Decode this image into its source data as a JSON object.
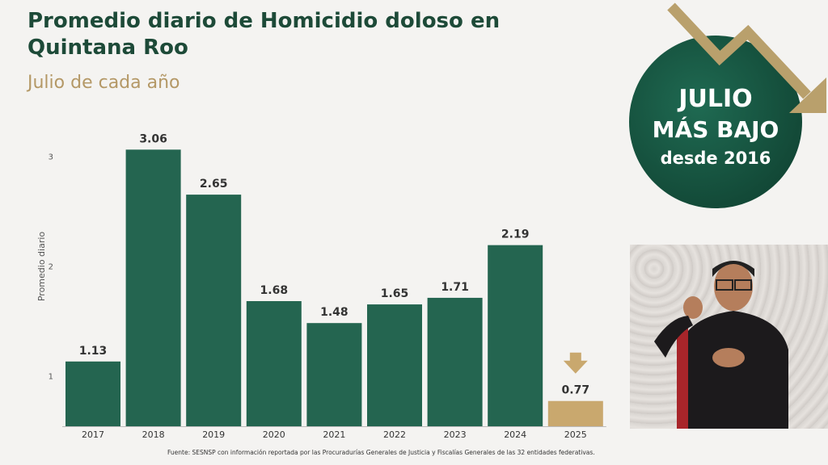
{
  "header": {
    "title": "Promedio diario de Homicidio doloso en Quintana Roo",
    "subtitle": "Julio de cada año"
  },
  "badge": {
    "line1": "JULIO",
    "line2": "MÁS BAJO",
    "line3": "desde 2016"
  },
  "footer": {
    "source": "Fuente: SESNSP con información reportada por las Procuradurías Generales de Justicia y Fiscalías Generales de las 32 entidades federativas."
  },
  "colors": {
    "bar": "#246550",
    "highlight": "#c9a86e",
    "title": "#1d4a38",
    "subtitle": "#b49866"
  },
  "icons": [
    "down-arrow-icon"
  ],
  "chart_data": {
    "type": "bar",
    "categories": [
      "2017",
      "2018",
      "2019",
      "2020",
      "2021",
      "2022",
      "2023",
      "2024",
      "2025"
    ],
    "values": [
      1.13,
      3.06,
      2.65,
      1.68,
      1.48,
      1.65,
      1.71,
      2.19,
      0.77
    ],
    "value_labels": [
      "1.13",
      "3.06",
      "2.65",
      "1.68",
      "1.48",
      "1.65",
      "1.71",
      "2.19",
      "0.77"
    ],
    "highlight_index": 8,
    "ylabel": "Promedio diario",
    "yticks": [
      "1",
      "2",
      "3"
    ],
    "ylim": [
      0.54,
      3.32
    ],
    "grid": false,
    "legend": "none"
  }
}
